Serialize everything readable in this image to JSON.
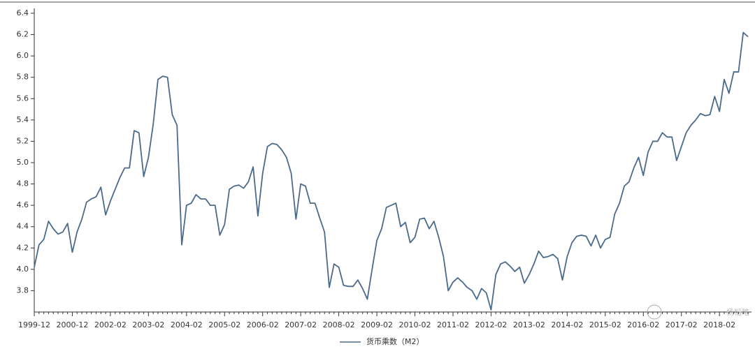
{
  "chart_data": {
    "type": "line",
    "categories": [
      "1999-12",
      null,
      null,
      null,
      null,
      null,
      null,
      null,
      "2000-12",
      null,
      null,
      null,
      null,
      null,
      null,
      null,
      "2002-02",
      null,
      null,
      null,
      null,
      null,
      null,
      null,
      "2003-02",
      null,
      null,
      null,
      null,
      null,
      null,
      null,
      "2004-02",
      null,
      null,
      null,
      null,
      null,
      null,
      null,
      "2005-02",
      null,
      null,
      null,
      null,
      null,
      null,
      null,
      "2006-02",
      null,
      null,
      null,
      null,
      null,
      null,
      null,
      "2007-02",
      null,
      null,
      null,
      null,
      null,
      null,
      null,
      "2008-02",
      null,
      null,
      null,
      null,
      null,
      null,
      null,
      "2009-02",
      null,
      null,
      null,
      null,
      null,
      null,
      null,
      "2010-02",
      null,
      null,
      null,
      null,
      null,
      null,
      null,
      "2011-02",
      null,
      null,
      null,
      null,
      null,
      null,
      null,
      "2012-02",
      null,
      null,
      null,
      null,
      null,
      null,
      null,
      "2013-02",
      null,
      null,
      null,
      null,
      null,
      null,
      null,
      "2014-02",
      null,
      null,
      null,
      null,
      null,
      null,
      null,
      "2015-02",
      null,
      null,
      null,
      null,
      null,
      null,
      null,
      "2016-02",
      null,
      null,
      null,
      null,
      null,
      null,
      null,
      "2017-02",
      null,
      null,
      null,
      null,
      null,
      null,
      null,
      "2018-02",
      null,
      null,
      null,
      null,
      null,
      null
    ],
    "series": [
      {
        "name": "货币乘数（M2）",
        "color": "#4a6a8c",
        "values": [
          4.02,
          4.23,
          4.28,
          4.45,
          4.38,
          4.33,
          4.35,
          4.43,
          4.16,
          4.35,
          4.47,
          4.63,
          4.66,
          4.68,
          4.77,
          4.51,
          4.64,
          4.75,
          4.86,
          4.95,
          4.95,
          5.3,
          5.28,
          4.87,
          5.05,
          5.36,
          5.78,
          5.81,
          5.8,
          5.45,
          5.35,
          4.23,
          4.6,
          4.62,
          4.7,
          4.66,
          4.66,
          4.6,
          4.6,
          4.32,
          4.42,
          4.75,
          4.78,
          4.79,
          4.76,
          4.82,
          4.96,
          4.5,
          4.9,
          5.15,
          5.18,
          5.17,
          5.12,
          5.05,
          4.9,
          4.47,
          4.8,
          4.78,
          4.62,
          4.62,
          4.48,
          4.35,
          3.83,
          4.05,
          4.02,
          3.85,
          3.84,
          3.84,
          3.9,
          3.82,
          3.72,
          4.0,
          4.27,
          4.38,
          4.58,
          4.6,
          4.62,
          4.4,
          4.44,
          4.25,
          4.3,
          4.47,
          4.48,
          4.38,
          4.45,
          4.3,
          4.12,
          3.8,
          3.88,
          3.92,
          3.88,
          3.83,
          3.8,
          3.72,
          3.82,
          3.78,
          3.62,
          3.95,
          4.05,
          4.07,
          4.03,
          3.98,
          4.02,
          3.87,
          3.95,
          4.05,
          4.17,
          4.11,
          4.12,
          4.14,
          4.1,
          3.9,
          4.12,
          4.25,
          4.31,
          4.32,
          4.31,
          4.22,
          4.32,
          4.2,
          4.28,
          4.3,
          4.52,
          4.62,
          4.78,
          4.82,
          4.95,
          5.05,
          4.88,
          5.1,
          5.2,
          5.2,
          5.28,
          5.24,
          5.24,
          5.02,
          5.15,
          5.28,
          5.35,
          5.4,
          5.46,
          5.44,
          5.45,
          5.62,
          5.48,
          5.78,
          5.65,
          5.85,
          5.85,
          6.22,
          6.18
        ]
      }
    ],
    "ylim": [
      3.6,
      6.4
    ],
    "yticks": [
      3.8,
      {
        "value": 4,
        "label": "4.0"
      },
      4.2,
      4.4,
      4.6,
      4.8,
      {
        "value": 5,
        "label": "5.0"
      },
      5.2,
      5.4,
      5.6,
      5.8,
      {
        "value": 6,
        "label": "6.0"
      },
      6.2,
      6.4
    ],
    "watermark": "杨韬略"
  }
}
